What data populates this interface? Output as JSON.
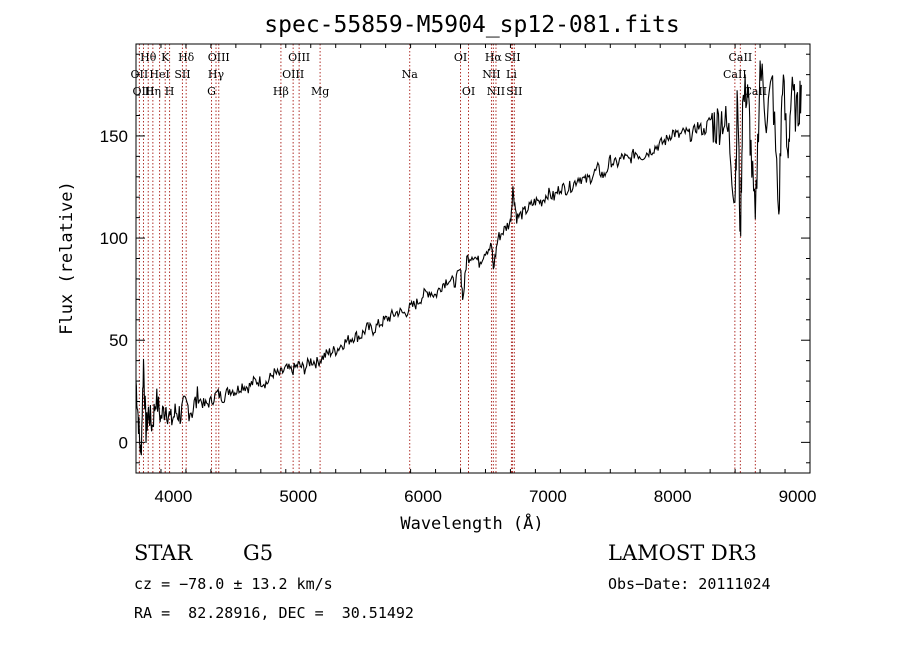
{
  "chart_data": {
    "type": "line",
    "title": "spec-55859-M5904_sp12-081.fits",
    "xlabel": "Wavelength (Å)",
    "ylabel": "Flux (relative)",
    "xlim": [
      3700,
      9100
    ],
    "ylim": [
      -15,
      195
    ],
    "xticks": [
      4000,
      5000,
      6000,
      7000,
      8000,
      9000
    ],
    "yticks": [
      0,
      50,
      100,
      150
    ],
    "series": [
      {
        "name": "flux",
        "x": [
          3700,
          3720,
          3740,
          3760,
          3780,
          3800,
          3830,
          3860,
          3900,
          3940,
          3980,
          4020,
          4060,
          4100,
          4150,
          4200,
          4250,
          4300,
          4350,
          4400,
          4450,
          4500,
          4550,
          4600,
          4650,
          4700,
          4750,
          4800,
          4850,
          4900,
          4950,
          5000,
          5050,
          5100,
          5150,
          5200,
          5250,
          5300,
          5350,
          5400,
          5450,
          5500,
          5550,
          5600,
          5650,
          5700,
          5750,
          5800,
          5850,
          5900,
          5950,
          6000,
          6050,
          6100,
          6150,
          6200,
          6250,
          6300,
          6320,
          6350,
          6400,
          6450,
          6500,
          6550,
          6563,
          6600,
          6650,
          6700,
          6720,
          6750,
          6800,
          6850,
          6900,
          6950,
          7000,
          7050,
          7100,
          7150,
          7200,
          7250,
          7300,
          7350,
          7400,
          7450,
          7500,
          7550,
          7600,
          7650,
          7700,
          7750,
          7800,
          7850,
          7900,
          7950,
          8000,
          8050,
          8100,
          8150,
          8200,
          8250,
          8300,
          8350,
          8400,
          8450,
          8498,
          8520,
          8542,
          8560,
          8600,
          8620,
          8662,
          8700,
          8750,
          8800,
          8850,
          8880,
          8920,
          8950,
          9000,
          9030
        ],
        "values": [
          30,
          10,
          -8,
          40,
          5,
          15,
          8,
          22,
          12,
          18,
          10,
          15,
          14,
          18,
          16,
          22,
          18,
          20,
          24,
          22,
          26,
          25,
          28,
          27,
          30,
          30,
          29,
          34,
          33,
          36,
          35,
          38,
          36,
          40,
          39,
          42,
          44,
          45,
          48,
          50,
          52,
          52,
          56,
          55,
          58,
          60,
          62,
          64,
          63,
          66,
          68,
          72,
          74,
          72,
          77,
          80,
          78,
          84,
          70,
          90,
          92,
          88,
          94,
          96,
          85,
          100,
          104,
          108,
          124,
          110,
          112,
          115,
          118,
          118,
          122,
          120,
          125,
          124,
          126,
          130,
          128,
          130,
          134,
          130,
          138,
          136,
          140,
          138,
          142,
          140,
          142,
          144,
          146,
          148,
          152,
          150,
          152,
          150,
          155,
          152,
          158,
          155,
          160,
          150,
          120,
          170,
          100,
          165,
          175,
          150,
          105,
          185,
          160,
          175,
          110,
          180,
          140,
          170,
          160,
          175
        ]
      }
    ],
    "lines": [
      {
        "label": "Hθ",
        "x": 3798,
        "row": 1
      },
      {
        "label": "OII",
        "x": 3727,
        "row": 2
      },
      {
        "label": "OIII",
        "x": 3760,
        "row": 3
      },
      {
        "label": "K",
        "x": 3934,
        "row": 1
      },
      {
        "label": "HeI",
        "x": 3889,
        "row": 2
      },
      {
        "label": "Hη",
        "x": 3835,
        "row": 3
      },
      {
        "label": "H",
        "x": 3969,
        "row": 3
      },
      {
        "label": "Hδ",
        "x": 4102,
        "row": 1
      },
      {
        "label": "SII",
        "x": 4072,
        "row": 2
      },
      {
        "label": "OIII",
        "x": 4363,
        "row": 1
      },
      {
        "label": "Hγ",
        "x": 4341,
        "row": 2
      },
      {
        "label": "G",
        "x": 4305,
        "row": 3
      },
      {
        "label": "OIII",
        "x": 5007,
        "row": 1
      },
      {
        "label": "OIII",
        "x": 4959,
        "row": 2
      },
      {
        "label": "Hβ",
        "x": 4861,
        "row": 3
      },
      {
        "label": "Mg",
        "x": 5175,
        "row": 3
      },
      {
        "label": "Na",
        "x": 5893,
        "row": 2
      },
      {
        "label": "OI",
        "x": 6300,
        "row": 1
      },
      {
        "label": "OI",
        "x": 6364,
        "row": 3
      },
      {
        "label": "Hα",
        "x": 6563,
        "row": 1
      },
      {
        "label": "SII",
        "x": 6716,
        "row": 1
      },
      {
        "label": "NII",
        "x": 6548,
        "row": 2
      },
      {
        "label": "Li",
        "x": 6708,
        "row": 2
      },
      {
        "label": "NII",
        "x": 6584,
        "row": 3
      },
      {
        "label": "SII",
        "x": 6731,
        "row": 3
      },
      {
        "label": "CaII",
        "x": 8542,
        "row": 1
      },
      {
        "label": "CaII",
        "x": 8498,
        "row": 2
      },
      {
        "label": "CaII",
        "x": 8662,
        "row": 3
      }
    ]
  },
  "footer": {
    "object_type": "STAR",
    "subclass": "G5",
    "survey": "LAMOST DR3",
    "cz": "cz = −78.0 ± 13.2 km/s",
    "obs_date": "Obs−Date: 20111024",
    "coords": "RA =  82.28916, DEC =  30.51492"
  },
  "colors": {
    "line_marker": "#b0302a",
    "spectrum": "#000000",
    "axes": "#000000"
  }
}
